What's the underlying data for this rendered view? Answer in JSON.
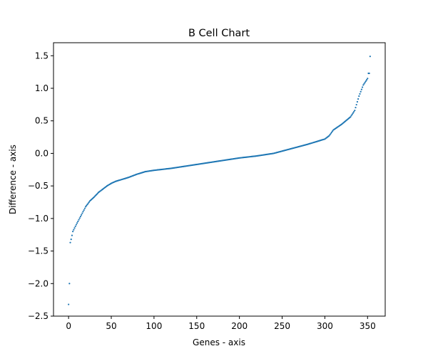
{
  "chart_data": {
    "type": "scatter",
    "title": "B Cell Chart",
    "xlabel": "Genes - axis",
    "ylabel": "Difference - axis",
    "xlim": [
      -17.65,
      370.65
    ],
    "ylim": [
      -2.5,
      1.7
    ],
    "xticks": [
      0,
      50,
      100,
      150,
      200,
      250,
      300,
      350
    ],
    "yticks": [
      -2.5,
      -2.0,
      -1.5,
      -1.0,
      -0.5,
      0.0,
      0.5,
      1.0,
      1.5
    ],
    "xtick_labels": [
      "0",
      "50",
      "100",
      "150",
      "200",
      "250",
      "300",
      "350"
    ],
    "ytick_labels": [
      "−2.5",
      "−2.0",
      "−1.5",
      "−1.0",
      "−0.5",
      "0.0",
      "0.5",
      "1.0",
      "1.5"
    ],
    "grid": false,
    "marker_color": "#1f77b4",
    "n_points": 354,
    "curve_knots": {
      "x": [
        0,
        1,
        2,
        3,
        5,
        8,
        12,
        16,
        20,
        25,
        30,
        35,
        40,
        45,
        50,
        55,
        60,
        70,
        80,
        90,
        100,
        120,
        140,
        160,
        180,
        200,
        220,
        240,
        260,
        280,
        300,
        305,
        310,
        320,
        330,
        335,
        340,
        345,
        350,
        351,
        352,
        353
      ],
      "y": [
        -2.32,
        -2.0,
        -1.37,
        -1.32,
        -1.2,
        -1.12,
        -1.02,
        -0.92,
        -0.82,
        -0.73,
        -0.67,
        -0.6,
        -0.55,
        -0.5,
        -0.46,
        -0.43,
        -0.41,
        -0.37,
        -0.32,
        -0.28,
        -0.26,
        -0.23,
        -0.19,
        -0.15,
        -0.11,
        -0.07,
        -0.04,
        0.0,
        0.07,
        0.14,
        0.22,
        0.27,
        0.36,
        0.45,
        0.56,
        0.66,
        0.88,
        1.05,
        1.15,
        1.23,
        1.23,
        1.49
      ]
    }
  }
}
